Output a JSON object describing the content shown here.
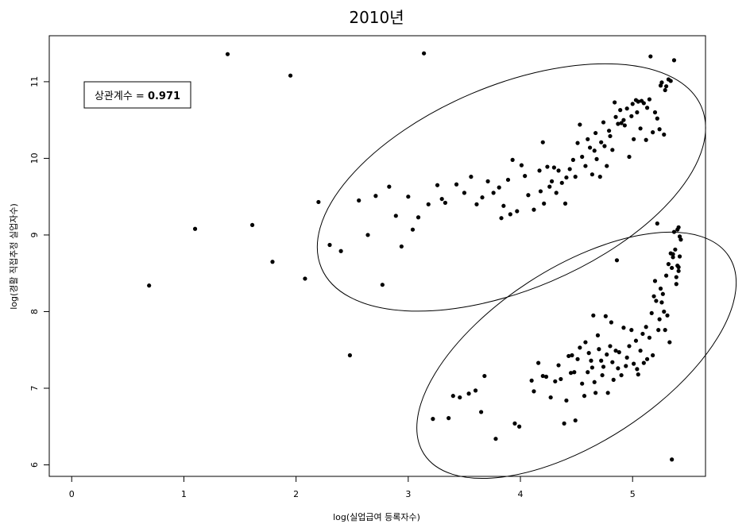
{
  "chart_data": {
    "type": "scatter",
    "title": "2010년",
    "xlabel": "log(실업급여 등록자수)",
    "ylabel": "log(경활 직접추정 실업자수)",
    "xlim": [
      -0.2,
      5.65
    ],
    "ylim": [
      5.85,
      11.6
    ],
    "xticks": [
      0,
      1,
      2,
      3,
      4,
      5
    ],
    "yticks": [
      6,
      7,
      8,
      9,
      10,
      11
    ],
    "grid": false,
    "legend": {
      "label": "상관계수 = ",
      "value": "0.971",
      "position": "top-left"
    },
    "ellipses": [
      {
        "name": "upper-cluster",
        "cx": 3.92,
        "cy": 9.62,
        "rx": 1.84,
        "ry": 0.7,
        "angle_deg": -23
      },
      {
        "name": "lower-cluster",
        "cx": 4.5,
        "cy": 7.43,
        "rx": 1.62,
        "ry": 0.6,
        "angle_deg": -33
      }
    ],
    "points": [
      [
        0.69,
        8.34
      ],
      [
        1.1,
        9.08
      ],
      [
        1.39,
        11.36
      ],
      [
        1.61,
        9.13
      ],
      [
        1.79,
        8.65
      ],
      [
        1.95,
        11.08
      ],
      [
        2.08,
        8.43
      ],
      [
        2.2,
        9.43
      ],
      [
        2.3,
        8.87
      ],
      [
        2.4,
        8.79
      ],
      [
        2.48,
        7.43
      ],
      [
        2.56,
        9.45
      ],
      [
        2.64,
        9.0
      ],
      [
        2.71,
        9.51
      ],
      [
        2.77,
        8.35
      ],
      [
        2.83,
        9.63
      ],
      [
        2.89,
        9.25
      ],
      [
        2.94,
        8.85
      ],
      [
        3.0,
        9.5
      ],
      [
        3.04,
        9.07
      ],
      [
        3.09,
        9.23
      ],
      [
        3.14,
        11.37
      ],
      [
        3.18,
        9.4
      ],
      [
        3.26,
        9.65
      ],
      [
        3.3,
        9.47
      ],
      [
        3.33,
        9.42
      ],
      [
        3.43,
        9.66
      ],
      [
        3.5,
        9.55
      ],
      [
        3.56,
        9.76
      ],
      [
        3.61,
        9.4
      ],
      [
        3.66,
        9.49
      ],
      [
        3.71,
        9.7
      ],
      [
        3.76,
        9.55
      ],
      [
        3.81,
        9.62
      ],
      [
        3.83,
        9.22
      ],
      [
        3.85,
        9.38
      ],
      [
        3.89,
        9.72
      ],
      [
        3.91,
        9.27
      ],
      [
        3.93,
        9.98
      ],
      [
        3.97,
        9.31
      ],
      [
        4.01,
        9.91
      ],
      [
        4.04,
        9.77
      ],
      [
        4.07,
        9.52
      ],
      [
        4.12,
        9.33
      ],
      [
        4.17,
        9.84
      ],
      [
        4.18,
        9.57
      ],
      [
        4.2,
        10.21
      ],
      [
        4.21,
        9.41
      ],
      [
        4.24,
        9.89
      ],
      [
        4.26,
        9.63
      ],
      [
        4.28,
        9.7
      ],
      [
        4.3,
        9.88
      ],
      [
        4.32,
        9.55
      ],
      [
        4.34,
        9.84
      ],
      [
        4.37,
        9.68
      ],
      [
        4.4,
        9.41
      ],
      [
        4.41,
        9.75
      ],
      [
        4.44,
        9.86
      ],
      [
        4.47,
        9.98
      ],
      [
        4.49,
        9.76
      ],
      [
        4.51,
        10.2
      ],
      [
        4.53,
        10.44
      ],
      [
        4.55,
        10.02
      ],
      [
        4.58,
        9.9
      ],
      [
        4.6,
        10.25
      ],
      [
        4.62,
        10.14
      ],
      [
        4.64,
        9.79
      ],
      [
        4.66,
        10.1
      ],
      [
        4.67,
        10.33
      ],
      [
        4.68,
        9.99
      ],
      [
        4.71,
        9.76
      ],
      [
        4.72,
        10.21
      ],
      [
        4.74,
        10.47
      ],
      [
        4.75,
        10.16
      ],
      [
        4.77,
        9.9
      ],
      [
        4.79,
        10.36
      ],
      [
        4.8,
        10.29
      ],
      [
        4.82,
        10.11
      ],
      [
        4.84,
        10.73
      ],
      [
        4.85,
        10.54
      ],
      [
        4.87,
        10.45
      ],
      [
        4.89,
        10.63
      ],
      [
        4.9,
        10.46
      ],
      [
        4.92,
        10.5
      ],
      [
        4.93,
        10.43
      ],
      [
        4.95,
        10.65
      ],
      [
        4.97,
        10.02
      ],
      [
        4.99,
        10.55
      ],
      [
        5.0,
        10.71
      ],
      [
        5.01,
        10.25
      ],
      [
        5.03,
        10.76
      ],
      [
        5.04,
        10.6
      ],
      [
        5.05,
        10.74
      ],
      [
        5.07,
        10.39
      ],
      [
        5.08,
        10.75
      ],
      [
        5.1,
        10.72
      ],
      [
        5.12,
        10.24
      ],
      [
        5.13,
        10.66
      ],
      [
        5.15,
        10.77
      ],
      [
        5.16,
        11.33
      ],
      [
        5.18,
        10.34
      ],
      [
        5.2,
        10.6
      ],
      [
        5.22,
        10.52
      ],
      [
        5.24,
        10.38
      ],
      [
        5.25,
        10.95
      ],
      [
        5.26,
        10.99
      ],
      [
        5.28,
        10.31
      ],
      [
        5.29,
        10.89
      ],
      [
        5.3,
        10.94
      ],
      [
        5.32,
        11.03
      ],
      [
        5.34,
        11.01
      ],
      [
        5.37,
        11.28
      ],
      [
        3.22,
        6.6
      ],
      [
        3.36,
        6.61
      ],
      [
        3.4,
        6.9
      ],
      [
        3.46,
        6.88
      ],
      [
        3.54,
        6.93
      ],
      [
        3.6,
        6.97
      ],
      [
        3.65,
        6.69
      ],
      [
        3.68,
        7.16
      ],
      [
        3.78,
        6.34
      ],
      [
        3.95,
        6.54
      ],
      [
        3.99,
        6.5
      ],
      [
        4.1,
        7.1
      ],
      [
        4.12,
        6.96
      ],
      [
        4.16,
        7.33
      ],
      [
        4.2,
        7.16
      ],
      [
        4.23,
        7.15
      ],
      [
        4.27,
        6.88
      ],
      [
        4.31,
        7.09
      ],
      [
        4.34,
        7.3
      ],
      [
        4.36,
        7.12
      ],
      [
        4.39,
        6.54
      ],
      [
        4.41,
        6.84
      ],
      [
        4.43,
        7.42
      ],
      [
        4.45,
        7.2
      ],
      [
        4.46,
        7.43
      ],
      [
        4.48,
        7.21
      ],
      [
        4.49,
        6.58
      ],
      [
        4.51,
        7.38
      ],
      [
        4.53,
        7.53
      ],
      [
        4.55,
        7.06
      ],
      [
        4.57,
        6.9
      ],
      [
        4.58,
        7.6
      ],
      [
        4.6,
        7.21
      ],
      [
        4.61,
        7.46
      ],
      [
        4.63,
        7.36
      ],
      [
        4.64,
        7.27
      ],
      [
        4.65,
        7.95
      ],
      [
        4.66,
        7.08
      ],
      [
        4.67,
        6.94
      ],
      [
        4.69,
        7.69
      ],
      [
        4.7,
        7.51
      ],
      [
        4.72,
        7.36
      ],
      [
        4.73,
        7.17
      ],
      [
        4.74,
        7.28
      ],
      [
        4.76,
        7.94
      ],
      [
        4.77,
        7.44
      ],
      [
        4.78,
        6.94
      ],
      [
        4.8,
        7.55
      ],
      [
        4.81,
        7.86
      ],
      [
        4.82,
        7.34
      ],
      [
        4.83,
        7.11
      ],
      [
        4.85,
        7.49
      ],
      [
        4.86,
        8.67
      ],
      [
        4.87,
        7.26
      ],
      [
        4.88,
        7.47
      ],
      [
        4.9,
        7.17
      ],
      [
        4.92,
        7.79
      ],
      [
        4.94,
        7.29
      ],
      [
        4.95,
        7.4
      ],
      [
        4.97,
        7.55
      ],
      [
        4.99,
        7.76
      ],
      [
        5.01,
        7.32
      ],
      [
        5.03,
        7.62
      ],
      [
        5.04,
        7.25
      ],
      [
        5.05,
        7.18
      ],
      [
        5.07,
        7.49
      ],
      [
        5.09,
        7.71
      ],
      [
        5.1,
        7.33
      ],
      [
        5.12,
        7.8
      ],
      [
        5.13,
        7.38
      ],
      [
        5.15,
        7.66
      ],
      [
        5.17,
        7.98
      ],
      [
        5.18,
        7.43
      ],
      [
        5.19,
        8.2
      ],
      [
        5.2,
        8.4
      ],
      [
        5.21,
        8.14
      ],
      [
        5.22,
        9.15
      ],
      [
        5.23,
        7.76
      ],
      [
        5.24,
        7.9
      ],
      [
        5.25,
        8.3
      ],
      [
        5.26,
        8.12
      ],
      [
        5.27,
        8.23
      ],
      [
        5.28,
        8.0
      ],
      [
        5.29,
        7.76
      ],
      [
        5.3,
        8.47
      ],
      [
        5.31,
        7.95
      ],
      [
        5.32,
        8.62
      ],
      [
        5.33,
        7.6
      ],
      [
        5.34,
        8.76
      ],
      [
        5.35,
        8.57
      ],
      [
        5.36,
        8.71
      ],
      [
        5.37,
        9.04
      ],
      [
        5.38,
        8.81
      ],
      [
        5.39,
        8.36
      ],
      [
        5.4,
        9.07
      ],
      [
        5.41,
        8.58
      ],
      [
        5.42,
        8.98
      ],
      [
        5.35,
        6.07
      ],
      [
        5.39,
        8.45
      ],
      [
        5.4,
        8.6
      ],
      [
        5.41,
        8.53
      ],
      [
        5.42,
        8.72
      ],
      [
        5.36,
        8.75
      ],
      [
        5.43,
        8.94
      ],
      [
        5.41,
        9.1
      ]
    ]
  }
}
